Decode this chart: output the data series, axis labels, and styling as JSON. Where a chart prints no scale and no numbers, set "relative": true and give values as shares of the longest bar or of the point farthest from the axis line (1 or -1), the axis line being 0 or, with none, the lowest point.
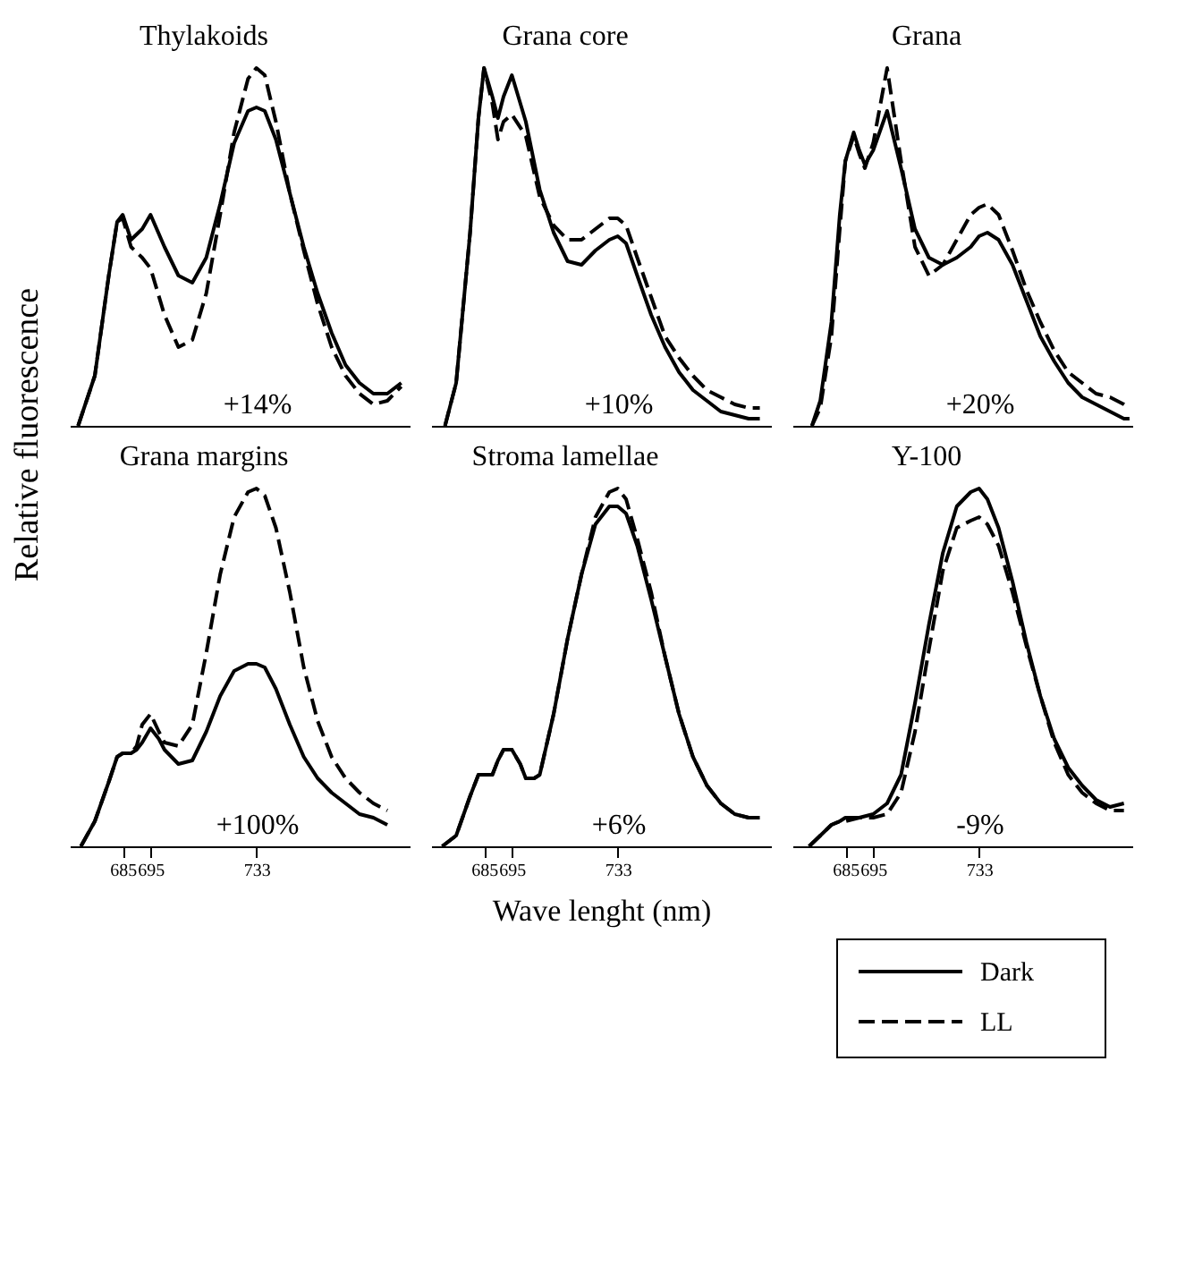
{
  "chart_data": [
    {
      "type": "line",
      "title": "Thylakoids",
      "ylabel": "Relative fluorescence",
      "annotations": [
        "+14%"
      ],
      "legend": "bottom right",
      "relative": true,
      "xlim": [
        666,
        788
      ],
      "tick_labels": false,
      "x": [
        669,
        675,
        680,
        683,
        685,
        688,
        692,
        695,
        700,
        705,
        710,
        715,
        720,
        725,
        730,
        733,
        736,
        740,
        745,
        750,
        755,
        760,
        765,
        770,
        775,
        780,
        785
      ],
      "series": [
        {
          "name": "Dark",
          "color": "#000000",
          "line_style": "solid",
          "values": [
            0,
            0.14,
            0.42,
            0.57,
            0.59,
            0.52,
            0.55,
            0.59,
            0.5,
            0.42,
            0.4,
            0.47,
            0.62,
            0.79,
            0.88,
            0.89,
            0.88,
            0.8,
            0.65,
            0.5,
            0.37,
            0.26,
            0.17,
            0.12,
            0.09,
            0.09,
            0.12
          ]
        },
        {
          "name": "LL",
          "color": "#000000",
          "line_style": "dashed",
          "values": [
            0,
            0.14,
            0.42,
            0.57,
            0.58,
            0.5,
            0.47,
            0.44,
            0.31,
            0.22,
            0.24,
            0.37,
            0.59,
            0.82,
            0.97,
            1.0,
            0.98,
            0.85,
            0.65,
            0.49,
            0.34,
            0.22,
            0.14,
            0.09,
            0.06,
            0.07,
            0.11
          ]
        }
      ]
    },
    {
      "type": "line",
      "title": "Grana core",
      "annotations": [
        "+10%"
      ],
      "relative": true,
      "xlim": [
        666,
        788
      ],
      "tick_labels": false,
      "x": [
        671,
        675,
        680,
        683,
        685,
        688,
        690,
        692,
        695,
        700,
        705,
        710,
        715,
        720,
        725,
        730,
        733,
        736,
        740,
        745,
        750,
        755,
        760,
        765,
        770,
        775,
        780,
        784
      ],
      "series": [
        {
          "color": "#000000",
          "line_style": "solid",
          "values": [
            0,
            0.12,
            0.54,
            0.86,
            1.0,
            0.92,
            0.86,
            0.92,
            0.98,
            0.85,
            0.66,
            0.54,
            0.46,
            0.45,
            0.49,
            0.52,
            0.53,
            0.51,
            0.42,
            0.31,
            0.22,
            0.15,
            0.1,
            0.07,
            0.04,
            0.03,
            0.02,
            0.02
          ]
        },
        {
          "color": "#000000",
          "line_style": "dashed",
          "values": [
            0,
            0.12,
            0.54,
            0.86,
            1.0,
            0.9,
            0.8,
            0.85,
            0.87,
            0.81,
            0.64,
            0.56,
            0.52,
            0.52,
            0.55,
            0.58,
            0.58,
            0.56,
            0.47,
            0.36,
            0.25,
            0.19,
            0.14,
            0.1,
            0.08,
            0.06,
            0.05,
            0.05
          ]
        }
      ]
    },
    {
      "type": "line",
      "title": "Grana",
      "annotations": [
        "+20%"
      ],
      "relative": true,
      "xlim": [
        666,
        788
      ],
      "tick_labels": false,
      "x": [
        673,
        676,
        680,
        683,
        685,
        688,
        690,
        692,
        695,
        700,
        705,
        710,
        715,
        720,
        725,
        730,
        733,
        736,
        740,
        745,
        750,
        755,
        760,
        765,
        770,
        775,
        780,
        785,
        787
      ],
      "series": [
        {
          "color": "#000000",
          "line_style": "solid",
          "values": [
            0,
            0.07,
            0.29,
            0.59,
            0.74,
            0.82,
            0.77,
            0.73,
            0.77,
            0.88,
            0.72,
            0.55,
            0.47,
            0.45,
            0.47,
            0.5,
            0.53,
            0.54,
            0.52,
            0.45,
            0.35,
            0.25,
            0.18,
            0.12,
            0.08,
            0.06,
            0.04,
            0.02,
            0.02
          ]
        },
        {
          "color": "#000000",
          "line_style": "dashed",
          "values": [
            0,
            0.05,
            0.25,
            0.55,
            0.74,
            0.81,
            0.76,
            0.72,
            0.79,
            1.0,
            0.74,
            0.5,
            0.42,
            0.45,
            0.52,
            0.59,
            0.61,
            0.62,
            0.59,
            0.49,
            0.38,
            0.29,
            0.21,
            0.15,
            0.12,
            0.09,
            0.08,
            0.06,
            0.05
          ]
        }
      ]
    },
    {
      "type": "line",
      "title": "Grana margins",
      "annotations": [
        "+100%"
      ],
      "relative": true,
      "xlim": [
        666,
        788
      ],
      "xticks": [
        685,
        695,
        733
      ],
      "tick_labels": "x",
      "x": [
        670,
        675,
        680,
        683,
        685,
        688,
        690,
        692,
        695,
        698,
        700,
        705,
        710,
        715,
        720,
        725,
        730,
        733,
        736,
        740,
        745,
        750,
        755,
        760,
        765,
        770,
        775,
        780
      ],
      "series": [
        {
          "color": "#000000",
          "line_style": "solid",
          "values": [
            0,
            0.07,
            0.18,
            0.25,
            0.26,
            0.26,
            0.27,
            0.29,
            0.33,
            0.3,
            0.27,
            0.23,
            0.24,
            0.32,
            0.42,
            0.49,
            0.51,
            0.51,
            0.5,
            0.44,
            0.34,
            0.25,
            0.19,
            0.15,
            0.12,
            0.09,
            0.08,
            0.06
          ]
        },
        {
          "color": "#000000",
          "line_style": "dashed",
          "values": [
            0,
            0.07,
            0.18,
            0.25,
            0.26,
            0.26,
            0.28,
            0.34,
            0.37,
            0.32,
            0.29,
            0.28,
            0.34,
            0.54,
            0.76,
            0.92,
            0.99,
            1.0,
            0.98,
            0.89,
            0.71,
            0.5,
            0.35,
            0.25,
            0.19,
            0.15,
            0.12,
            0.1
          ]
        }
      ]
    },
    {
      "type": "line",
      "title": "Stroma lamellae",
      "xlabel": "Wave lenght (nm)",
      "annotations": [
        "+6%"
      ],
      "relative": true,
      "xlim": [
        666,
        788
      ],
      "xticks": [
        685,
        695,
        733
      ],
      "tick_labels": "x",
      "x": [
        670,
        675,
        680,
        683,
        685,
        688,
        690,
        692,
        695,
        698,
        700,
        703,
        705,
        710,
        715,
        720,
        725,
        730,
        733,
        736,
        740,
        745,
        750,
        755,
        760,
        765,
        770,
        775,
        780,
        784
      ],
      "series": [
        {
          "color": "#000000",
          "line_style": "solid",
          "values": [
            0,
            0.03,
            0.14,
            0.2,
            0.2,
            0.2,
            0.24,
            0.27,
            0.27,
            0.23,
            0.19,
            0.19,
            0.2,
            0.37,
            0.58,
            0.76,
            0.9,
            0.95,
            0.95,
            0.93,
            0.84,
            0.69,
            0.53,
            0.37,
            0.25,
            0.17,
            0.12,
            0.09,
            0.08,
            0.08
          ]
        },
        {
          "color": "#000000",
          "line_style": "dashed",
          "values": [
            0,
            0.03,
            0.14,
            0.2,
            0.2,
            0.2,
            0.24,
            0.27,
            0.27,
            0.23,
            0.19,
            0.19,
            0.2,
            0.37,
            0.58,
            0.76,
            0.92,
            0.99,
            1.0,
            0.97,
            0.86,
            0.71,
            0.53,
            0.37,
            0.25,
            0.17,
            0.12,
            0.09,
            0.08,
            0.08
          ]
        }
      ]
    },
    {
      "type": "line",
      "title": "Y-100",
      "annotations": [
        "-9%"
      ],
      "relative": true,
      "xlim": [
        666,
        788
      ],
      "xticks": [
        685,
        695,
        733
      ],
      "tick_labels": "x",
      "x": [
        672,
        676,
        680,
        683,
        685,
        690,
        695,
        700,
        705,
        710,
        715,
        720,
        725,
        730,
        733,
        736,
        740,
        745,
        750,
        755,
        760,
        765,
        770,
        775,
        780,
        785
      ],
      "series": [
        {
          "color": "#000000",
          "line_style": "solid",
          "values": [
            0,
            0.03,
            0.06,
            0.07,
            0.08,
            0.08,
            0.09,
            0.12,
            0.2,
            0.4,
            0.62,
            0.82,
            0.95,
            0.99,
            1.0,
            0.97,
            0.89,
            0.74,
            0.57,
            0.42,
            0.3,
            0.22,
            0.17,
            0.13,
            0.11,
            0.12
          ]
        },
        {
          "color": "#000000",
          "line_style": "dashed",
          "values": [
            0,
            0.03,
            0.06,
            0.07,
            0.07,
            0.08,
            0.08,
            0.09,
            0.15,
            0.32,
            0.55,
            0.77,
            0.89,
            0.91,
            0.92,
            0.9,
            0.84,
            0.71,
            0.56,
            0.42,
            0.29,
            0.2,
            0.15,
            0.12,
            0.1,
            0.1
          ]
        }
      ]
    }
  ]
}
